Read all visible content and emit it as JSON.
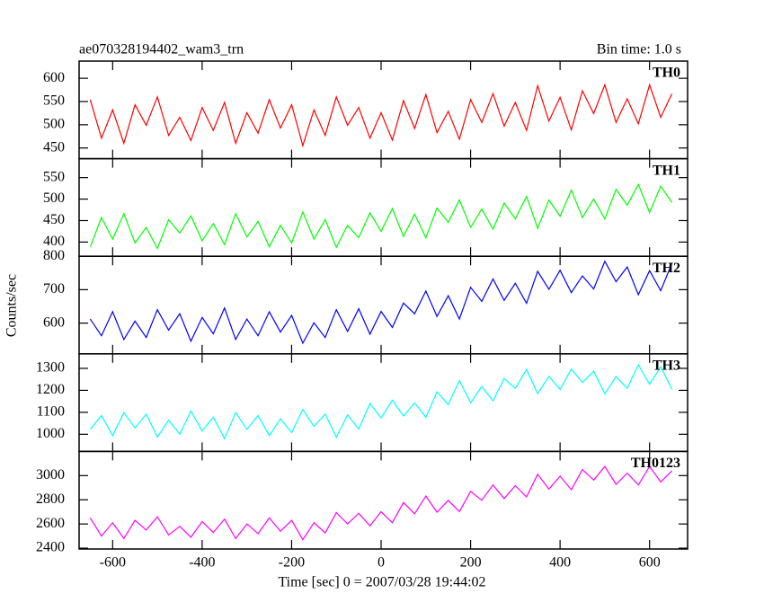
{
  "chart_data": [
    {
      "type": "line",
      "title": "ae070328194402_wam3_trn",
      "subtitle": "Bin time: 1.0 s",
      "ylabel": "Counts/sec",
      "x": [
        -650,
        -625,
        -600,
        -575,
        -550,
        -525,
        -500,
        -475,
        -450,
        -425,
        -400,
        -375,
        -350,
        -325,
        -300,
        -275,
        -250,
        -225,
        -200,
        -175,
        -150,
        -125,
        -100,
        -75,
        -50,
        -25,
        0,
        25,
        50,
        75,
        100,
        125,
        150,
        175,
        200,
        225,
        250,
        275,
        300,
        325,
        350,
        375,
        400,
        425,
        450,
        475,
        500,
        525,
        550,
        575,
        600,
        625,
        650
      ],
      "series": [
        {
          "name": "TH0",
          "color": "#ff0000",
          "values": [
            554,
            471,
            532,
            460,
            543,
            499,
            560,
            477,
            516,
            466,
            537,
            488,
            548,
            460,
            526,
            482,
            554,
            493,
            543,
            455,
            532,
            477,
            560,
            499,
            537,
            471,
            526,
            467,
            552,
            492,
            565,
            483,
            529,
            469,
            554,
            505,
            567,
            497,
            548,
            488,
            584,
            508,
            559,
            489,
            573,
            524,
            586,
            505,
            556,
            502,
            586,
            516,
            567
          ]
        }
      ],
      "ylim": [
        427,
        637
      ],
      "yticks": [
        450,
        500,
        550,
        600
      ]
    },
    {
      "type": "line",
      "x": [
        -650,
        -625,
        -600,
        -575,
        -550,
        -525,
        -500,
        -475,
        -450,
        -425,
        -400,
        -375,
        -350,
        -325,
        -300,
        -275,
        -250,
        -225,
        -200,
        -175,
        -150,
        -125,
        -100,
        -75,
        -50,
        -25,
        0,
        25,
        50,
        75,
        100,
        125,
        150,
        175,
        200,
        225,
        250,
        275,
        300,
        325,
        350,
        375,
        400,
        425,
        450,
        475,
        500,
        525,
        550,
        575,
        600,
        625,
        650
      ],
      "series": [
        {
          "name": "TH1",
          "color": "#00ff00",
          "values": [
            389,
            457,
            407,
            466,
            398,
            434,
            385,
            452,
            421,
            461,
            403,
            443,
            394,
            466,
            412,
            448,
            389,
            439,
            398,
            470,
            407,
            452,
            388,
            439,
            410,
            468,
            425,
            478,
            413,
            465,
            410,
            479,
            446,
            498,
            434,
            477,
            430,
            491,
            454,
            506,
            432,
            498,
            460,
            521,
            457,
            500,
            454,
            523,
            486,
            534,
            469,
            530,
            492
          ]
        }
      ],
      "ylim": [
        367,
        594
      ],
      "yticks": [
        400,
        450,
        500,
        550
      ]
    },
    {
      "type": "line",
      "x": [
        -650,
        -625,
        -600,
        -575,
        -550,
        -525,
        -500,
        -475,
        -450,
        -425,
        -400,
        -375,
        -350,
        -325,
        -300,
        -275,
        -250,
        -225,
        -200,
        -175,
        -150,
        -125,
        -100,
        -75,
        -50,
        -25,
        0,
        25,
        50,
        75,
        100,
        125,
        150,
        175,
        200,
        225,
        250,
        275,
        300,
        325,
        350,
        375,
        400,
        425,
        450,
        475,
        500,
        525,
        550,
        575,
        600,
        625,
        650
      ],
      "series": [
        {
          "name": "TH2",
          "color": "#0000ff",
          "values": [
            612,
            562,
            634,
            551,
            606,
            557,
            640,
            579,
            628,
            546,
            617,
            568,
            645,
            551,
            612,
            562,
            634,
            573,
            623,
            540,
            601,
            557,
            640,
            575,
            643,
            567,
            635,
            587,
            660,
            628,
            696,
            620,
            682,
            612,
            707,
            665,
            732,
            668,
            719,
            659,
            755,
            701,
            758,
            691,
            741,
            702,
            785,
            724,
            768,
            685,
            757,
            697,
            779
          ]
        }
      ],
      "ylim": [
        508,
        800
      ],
      "yticks": [
        600,
        700,
        800
      ]
    },
    {
      "type": "line",
      "x": [
        -650,
        -625,
        -600,
        -575,
        -550,
        -525,
        -500,
        -475,
        -450,
        -425,
        -400,
        -375,
        -350,
        -325,
        -300,
        -275,
        -250,
        -225,
        -200,
        -175,
        -150,
        -125,
        -100,
        -75,
        -50,
        -25,
        0,
        25,
        50,
        75,
        100,
        125,
        150,
        175,
        200,
        225,
        250,
        275,
        300,
        325,
        350,
        375,
        400,
        425,
        450,
        475,
        500,
        525,
        550,
        575,
        600,
        625,
        650
      ],
      "series": [
        {
          "name": "TH3",
          "color": "#00ffff",
          "values": [
            1022,
            1085,
            994,
            1099,
            1029,
            1092,
            987,
            1064,
            1001,
            1106,
            1015,
            1078,
            980,
            1099,
            1022,
            1085,
            994,
            1071,
            1008,
            1113,
            1036,
            1092,
            987,
            1089,
            1024,
            1140,
            1074,
            1155,
            1083,
            1143,
            1077,
            1193,
            1135,
            1244,
            1143,
            1217,
            1152,
            1254,
            1209,
            1295,
            1185,
            1264,
            1204,
            1297,
            1236,
            1287,
            1184,
            1263,
            1209,
            1316,
            1228,
            1307,
            1204
          ]
        }
      ],
      "ylim": [
        922,
        1366
      ],
      "yticks": [
        1000,
        1100,
        1200,
        1300
      ]
    },
    {
      "type": "line",
      "xlabel": "Time [sec] 0 = 2007/03/28 19:44:02",
      "x": [
        -650,
        -625,
        -600,
        -575,
        -550,
        -525,
        -500,
        -475,
        -450,
        -425,
        -400,
        -375,
        -350,
        -325,
        -300,
        -275,
        -250,
        -225,
        -200,
        -175,
        -150,
        -125,
        -100,
        -75,
        -50,
        -25,
        0,
        25,
        50,
        75,
        100,
        125,
        150,
        175,
        200,
        225,
        250,
        275,
        300,
        325,
        350,
        375,
        400,
        425,
        450,
        475,
        500,
        525,
        550,
        575,
        600,
        625,
        650
      ],
      "series": [
        {
          "name": "TH0123",
          "color": "#ff00ff",
          "values": [
            2650,
            2500,
            2610,
            2480,
            2630,
            2550,
            2660,
            2510,
            2580,
            2490,
            2620,
            2530,
            2640,
            2480,
            2600,
            2520,
            2650,
            2540,
            2630,
            2470,
            2610,
            2527,
            2694,
            2601,
            2688,
            2585,
            2702,
            2610,
            2777,
            2684,
            2831,
            2698,
            2795,
            2702,
            2869,
            2796,
            2923,
            2810,
            2917,
            2824,
            3011,
            2889,
            2996,
            2883,
            3050,
            2963,
            3075,
            2928,
            3020,
            2923,
            3075,
            2948,
            3040
          ]
        }
      ],
      "ylim": [
        2393,
        3200
      ],
      "yticks": [
        2400,
        2600,
        2800,
        3000
      ],
      "xlim": [
        -675,
        685
      ],
      "xticks": [
        -600,
        -400,
        -200,
        0,
        200,
        400,
        600
      ]
    }
  ]
}
